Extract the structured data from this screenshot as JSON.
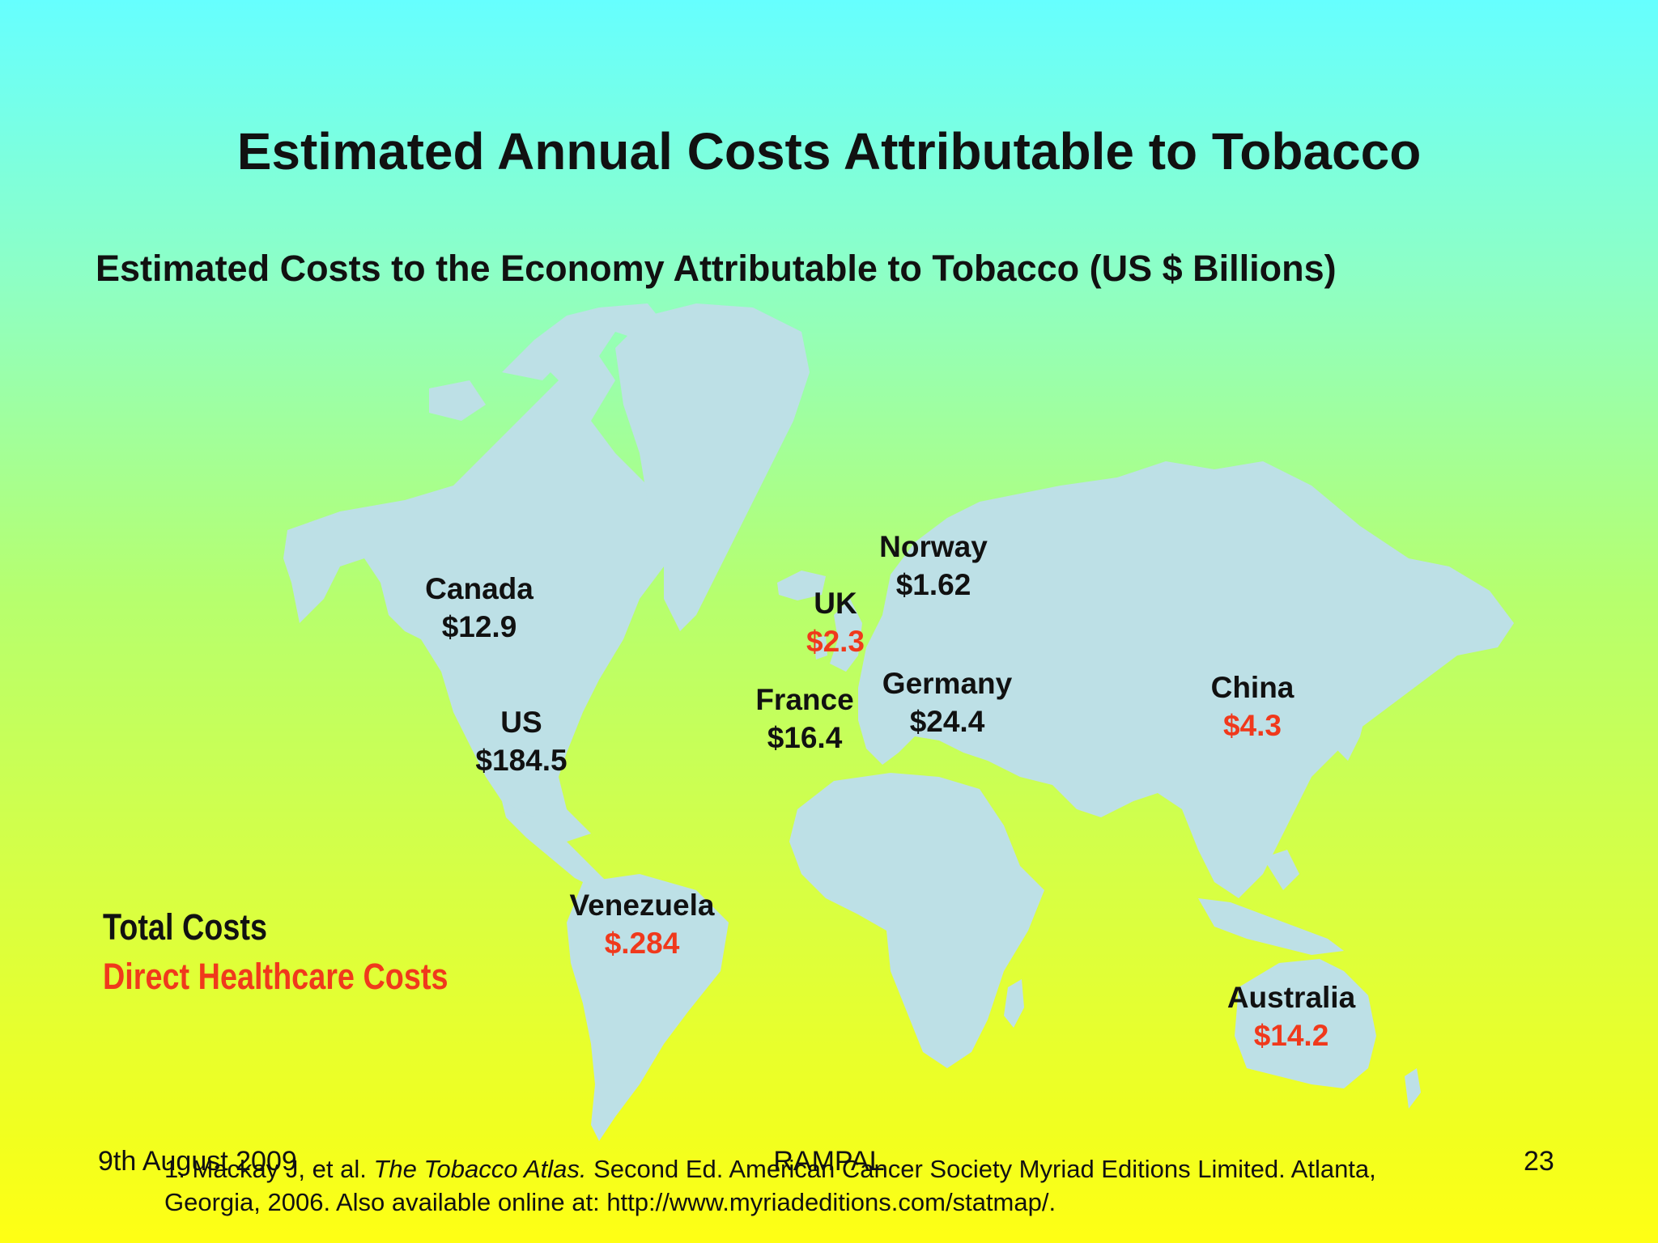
{
  "slide": {
    "title": "Estimated Annual Costs Attributable to Tobacco",
    "subtitle": "Estimated Costs to the Economy Attributable to Tobacco (US $ Billions)"
  },
  "colors": {
    "total_cost_text": "#111111",
    "healthcare_cost_text": "#f0391c",
    "land": "#bde0e6",
    "background_top": "#66ffff",
    "background_bottom": "#ffff14"
  },
  "countries": [
    {
      "name": "Canada",
      "value": "$12.9",
      "cost_type": "total"
    },
    {
      "name": "US",
      "value": "$184.5",
      "cost_type": "total"
    },
    {
      "name": "UK",
      "value": "$2.3",
      "cost_type": "direct"
    },
    {
      "name": "Norway",
      "value": "$1.62",
      "cost_type": "total"
    },
    {
      "name": "France",
      "value": "$16.4",
      "cost_type": "total"
    },
    {
      "name": "Germany",
      "value": "$24.4",
      "cost_type": "total"
    },
    {
      "name": "China",
      "value": "$4.3",
      "cost_type": "direct"
    },
    {
      "name": "Venezuela",
      "value": "$.284",
      "cost_type": "direct"
    },
    {
      "name": "Australia",
      "value": "$14.2",
      "cost_type": "direct"
    }
  ],
  "legend": {
    "total": "Total Costs",
    "direct": "Direct Healthcare Costs"
  },
  "footer": {
    "date": "9th August 2009",
    "author": "RAMPAL",
    "page": "23"
  },
  "citation": {
    "prefix": "1. Mackay J, et al. ",
    "title": "The Tobacco Atlas.",
    "rest_line1": " Second Ed. American Cancer Society Myriad Editions Limited. Atlanta,",
    "line2": "Georgia, 2006. Also available online at: http://www.myriadeditions.com/statmap/."
  }
}
